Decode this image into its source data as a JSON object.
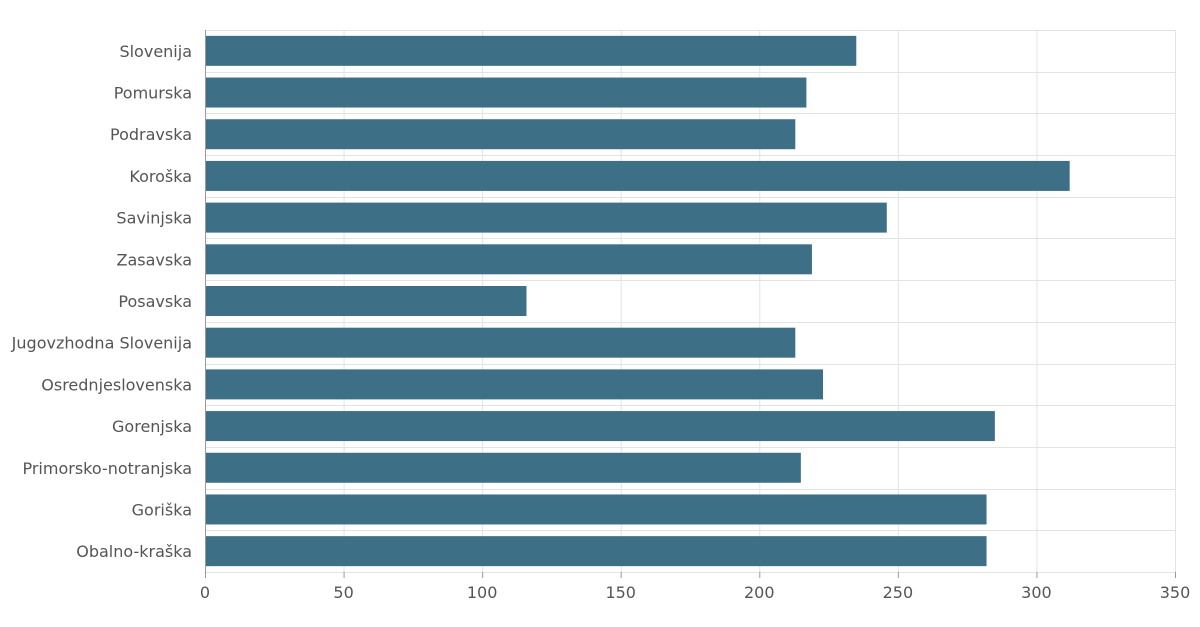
{
  "chart_data": {
    "type": "bar",
    "orientation": "horizontal",
    "categories": [
      "Slovenija",
      "Pomurska",
      "Podravska",
      "Koroška",
      "Savinjska",
      "Zasavska",
      "Posavska",
      "Jugovzhodna Slovenija",
      "Osrednjeslovenska",
      "Gorenjska",
      "Primorsko-notranjska",
      "Goriška",
      "Obalno-kraška"
    ],
    "values": [
      235,
      217,
      213,
      312,
      246,
      219,
      116,
      213,
      223,
      285,
      215,
      282,
      282
    ],
    "title": "",
    "xlabel": "",
    "ylabel": "",
    "xlim": [
      0,
      350
    ],
    "xticks": [
      0,
      50,
      100,
      150,
      200,
      250,
      300,
      350
    ],
    "grid": true,
    "legend": "none",
    "bar_color": "#3d7087"
  }
}
